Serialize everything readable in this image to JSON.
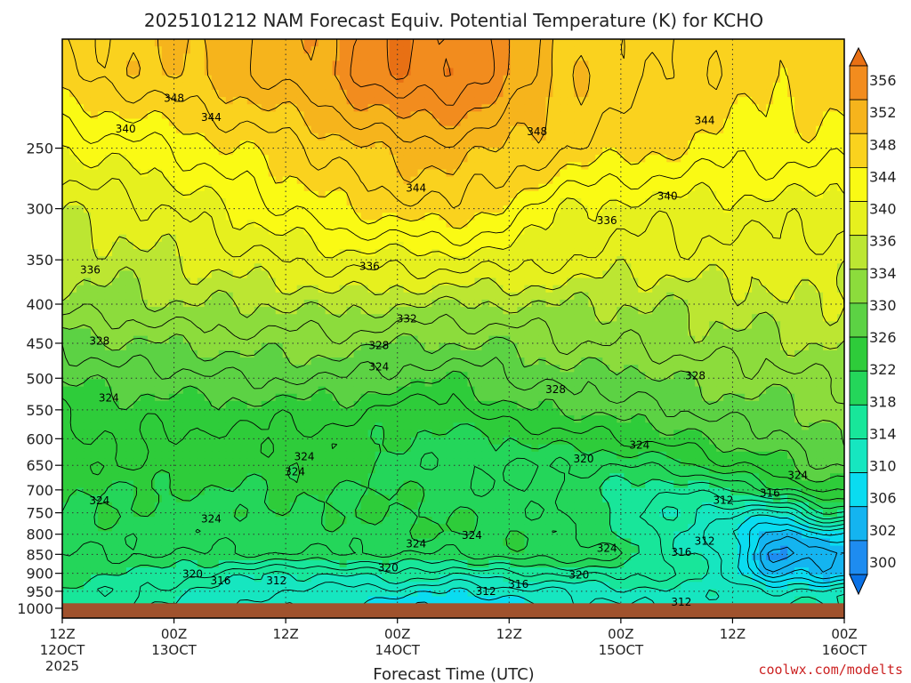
{
  "chart_data": {
    "type": "heatmap",
    "title": "2025101212 NAM Forecast Equiv. Potential Temperature (K) for KCHO",
    "xlabel": "Forecast Time (UTC)",
    "ylabel": "",
    "y_axis": {
      "type": "pressure",
      "unit": "hPa",
      "range": [
        1030,
        180
      ],
      "ticks": [
        250,
        300,
        350,
        400,
        450,
        500,
        550,
        600,
        650,
        700,
        750,
        800,
        850,
        900,
        950,
        1000
      ]
    },
    "x_axis": {
      "range_hours": [
        0,
        84
      ],
      "ticks": [
        {
          "hour": 0,
          "line1": "12Z",
          "line2": "12OCT",
          "line3": "2025"
        },
        {
          "hour": 12,
          "line1": "00Z",
          "line2": "13OCT",
          "line3": ""
        },
        {
          "hour": 24,
          "line1": "12Z",
          "line2": "",
          "line3": ""
        },
        {
          "hour": 36,
          "line1": "00Z",
          "line2": "14OCT",
          "line3": ""
        },
        {
          "hour": 48,
          "line1": "12Z",
          "line2": "",
          "line3": ""
        },
        {
          "hour": 60,
          "line1": "00Z",
          "line2": "15OCT",
          "line3": ""
        },
        {
          "hour": 72,
          "line1": "12Z",
          "line2": "",
          "line3": ""
        },
        {
          "hour": 84,
          "line1": "00Z",
          "line2": "16OCT",
          "line3": ""
        }
      ]
    },
    "grid": true,
    "ground": {
      "pressure": 985,
      "color": "#a0522d"
    },
    "colorbar": {
      "levels": [
        300,
        302,
        306,
        310,
        314,
        318,
        322,
        326,
        330,
        334,
        336,
        340,
        344,
        348,
        352,
        356
      ],
      "labels": [
        356,
        352,
        348,
        344,
        340,
        336,
        334,
        330,
        326,
        322,
        318,
        314,
        310,
        306,
        302,
        300
      ],
      "colors": [
        "#0a72e6",
        "#1e8cf0",
        "#14b4f0",
        "#0adcf0",
        "#16e6c0",
        "#18e69a",
        "#24d65a",
        "#2ecc3a",
        "#5cd244",
        "#8cdc3c",
        "#bce632",
        "#e6f01e",
        "#fafa14",
        "#fad21e",
        "#f6b41c",
        "#f28c1e",
        "#e87014"
      ]
    },
    "profile_hours": [
      0,
      6,
      12,
      18,
      24,
      30,
      36,
      42,
      48,
      54,
      60,
      66,
      72,
      76,
      78,
      80,
      82,
      84
    ],
    "profile_pressures": [
      200,
      250,
      300,
      350,
      400,
      450,
      500,
      550,
      600,
      650,
      700,
      750,
      800,
      850,
      900,
      950,
      985
    ],
    "values": [
      [
        346,
        340,
        336,
        335,
        333,
        328,
        326,
        324,
        323,
        323,
        322,
        322,
        321,
        320,
        319,
        318,
        318
      ],
      [
        347,
        341,
        337,
        335,
        333,
        330,
        327,
        325,
        325,
        324,
        322,
        322,
        321,
        320,
        318,
        316,
        316
      ],
      [
        348,
        342,
        338,
        336,
        334,
        330,
        327,
        325,
        323,
        323,
        322,
        321,
        321,
        320,
        317,
        315,
        314
      ],
      [
        349,
        344,
        340,
        337,
        334,
        331,
        328,
        325,
        324,
        323,
        322,
        321,
        321,
        320,
        315,
        313,
        312
      ],
      [
        351,
        345,
        342,
        338,
        334,
        331,
        328,
        325,
        323,
        323,
        322,
        322,
        321,
        320,
        314,
        312,
        311
      ],
      [
        353,
        347,
        344,
        339,
        335,
        331,
        328,
        325,
        323,
        323,
        322,
        322,
        321,
        320,
        314,
        311,
        310
      ],
      [
        356,
        349,
        345,
        339,
        334,
        330,
        327,
        323,
        322,
        321,
        322,
        322,
        322,
        320,
        316,
        311,
        309
      ],
      [
        356,
        349,
        346,
        339,
        334,
        330,
        326,
        323,
        321,
        320,
        321,
        322,
        322,
        320,
        314,
        310,
        308
      ],
      [
        352,
        348,
        343,
        339,
        334,
        330,
        328,
        326,
        322,
        320,
        320,
        321,
        322,
        321,
        316,
        311,
        309
      ],
      [
        348,
        346,
        340,
        338,
        334,
        332,
        329,
        326,
        323,
        320,
        320,
        320,
        321,
        322,
        316,
        312,
        311
      ],
      [
        347,
        345,
        339,
        337,
        334,
        332,
        329,
        327,
        324,
        320,
        317,
        317,
        318,
        320,
        317,
        313,
        312
      ],
      [
        346,
        344,
        339,
        337,
        334,
        333,
        330,
        328,
        325,
        321,
        316,
        314,
        314,
        315,
        316,
        314,
        313
      ],
      [
        345,
        343,
        339,
        337,
        335,
        333,
        331,
        329,
        327,
        324,
        318,
        312,
        310,
        311,
        312,
        313,
        313
      ],
      [
        345,
        343,
        339,
        337,
        335,
        333,
        331,
        329,
        327,
        325,
        321,
        311,
        305,
        302,
        304,
        312,
        314
      ],
      [
        345,
        343,
        339,
        337,
        336,
        334,
        331,
        329,
        328,
        326,
        322,
        312,
        303,
        301,
        305,
        313,
        314
      ],
      [
        345,
        343,
        339,
        337,
        336,
        334,
        332,
        330,
        329,
        327,
        324,
        316,
        307,
        304,
        306,
        313,
        314
      ],
      [
        345,
        343,
        339,
        337,
        336,
        334,
        332,
        331,
        330,
        328,
        325,
        318,
        308,
        302,
        304,
        313,
        314
      ],
      [
        345,
        343,
        339,
        337,
        336,
        334,
        332,
        331,
        330,
        328,
        325,
        318,
        308,
        303,
        305,
        313,
        314
      ]
    ],
    "contour_labels": [
      {
        "text": "348",
        "hour": 12.0,
        "pressure": 215
      },
      {
        "text": "344",
        "hour": 16.0,
        "pressure": 228
      },
      {
        "text": "340",
        "hour": 6.8,
        "pressure": 236
      },
      {
        "text": "348",
        "hour": 51.0,
        "pressure": 238
      },
      {
        "text": "344",
        "hour": 69.0,
        "pressure": 230
      },
      {
        "text": "344",
        "hour": 38.0,
        "pressure": 282
      },
      {
        "text": "340",
        "hour": 65.0,
        "pressure": 289
      },
      {
        "text": "336",
        "hour": 58.5,
        "pressure": 311
      },
      {
        "text": "336",
        "hour": 3.0,
        "pressure": 361
      },
      {
        "text": "336",
        "hour": 33.0,
        "pressure": 357
      },
      {
        "text": "332",
        "hour": 37.0,
        "pressure": 418
      },
      {
        "text": "328",
        "hour": 4.0,
        "pressure": 447
      },
      {
        "text": "328",
        "hour": 34.0,
        "pressure": 453
      },
      {
        "text": "324",
        "hour": 34.0,
        "pressure": 483
      },
      {
        "text": "328",
        "hour": 53.0,
        "pressure": 517
      },
      {
        "text": "328",
        "hour": 68.0,
        "pressure": 496
      },
      {
        "text": "324",
        "hour": 5.0,
        "pressure": 531
      },
      {
        "text": "324",
        "hour": 62.0,
        "pressure": 612
      },
      {
        "text": "324",
        "hour": 26.0,
        "pressure": 633
      },
      {
        "text": "320",
        "hour": 56.0,
        "pressure": 638
      },
      {
        "text": "324",
        "hour": 25.0,
        "pressure": 663
      },
      {
        "text": "324",
        "hour": 4.0,
        "pressure": 723
      },
      {
        "text": "324",
        "hour": 16.0,
        "pressure": 764
      },
      {
        "text": "324",
        "hour": 44.0,
        "pressure": 803
      },
      {
        "text": "324",
        "hour": 38.0,
        "pressure": 823
      },
      {
        "text": "324",
        "hour": 58.5,
        "pressure": 835
      },
      {
        "text": "324",
        "hour": 79.0,
        "pressure": 670
      },
      {
        "text": "316",
        "hour": 76.0,
        "pressure": 707
      },
      {
        "text": "312",
        "hour": 71.0,
        "pressure": 722
      },
      {
        "text": "312",
        "hour": 69.0,
        "pressure": 817
      },
      {
        "text": "316",
        "hour": 66.5,
        "pressure": 845
      },
      {
        "text": "320",
        "hour": 14.0,
        "pressure": 902
      },
      {
        "text": "316",
        "hour": 17.0,
        "pressure": 920
      },
      {
        "text": "312",
        "hour": 23.0,
        "pressure": 920
      },
      {
        "text": "320",
        "hour": 35.0,
        "pressure": 885
      },
      {
        "text": "312",
        "hour": 45.5,
        "pressure": 950
      },
      {
        "text": "316",
        "hour": 49.0,
        "pressure": 930
      },
      {
        "text": "320",
        "hour": 55.5,
        "pressure": 905
      },
      {
        "text": "312",
        "hour": 66.5,
        "pressure": 982
      }
    ]
  },
  "credit": "coolwx.com/modelts"
}
